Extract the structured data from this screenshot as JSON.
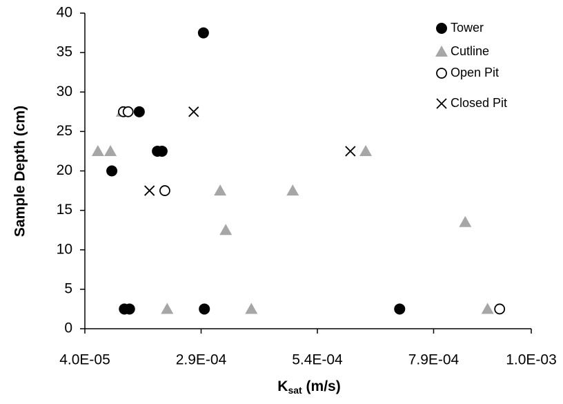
{
  "chart_data": {
    "type": "scatter",
    "x_label": [
      "K",
      "sat",
      " (m/s)"
    ],
    "y_label": "Sample Depth (cm)",
    "xlim": [
      4e-05,
      0.001
    ],
    "xticks": [
      {
        "value": 4e-05,
        "label": "4.0E-05"
      },
      {
        "value": 0.00029,
        "label": "2.9E-04"
      },
      {
        "value": 0.00054,
        "label": "5.4E-04"
      },
      {
        "value": 0.00079,
        "label": "7.9E-04"
      },
      {
        "value": 0.001,
        "label": "1.0E-03"
      }
    ],
    "ylim": [
      0,
      40
    ],
    "yticks": [
      0,
      5,
      10,
      15,
      20,
      25,
      30,
      35,
      40
    ],
    "grid": false,
    "legend": "top-right",
    "series": [
      {
        "name": "Tower",
        "color": "#000000",
        "marker": "circle-filled",
        "x": [
          0.000295,
          0.000157,
          0.000196,
          0.000206,
          9.8e-05,
          0.000125,
          0.000136,
          0.000297,
          0.000717
        ],
        "values": [
          37.5,
          27.5,
          22.5,
          22.5,
          20,
          2.5,
          2.5,
          2.5,
          2.5
        ]
      },
      {
        "name": "Cutline",
        "color": "#a6a6a6",
        "marker": "triangle",
        "x": [
          6.8e-05,
          9.5e-05,
          0.00012,
          0.000331,
          0.000343,
          0.000487,
          0.000644,
          0.000858,
          0.000217,
          0.000398,
          0.000906
        ],
        "values": [
          22.5,
          22.5,
          27.5,
          17.5,
          12.5,
          17.5,
          22.5,
          13.5,
          2.5,
          2.5,
          2.5
        ]
      },
      {
        "name": "Open Pit",
        "color": "#000000",
        "marker": "circle-open",
        "x": [
          0.000123,
          0.000133,
          0.000212,
          0.000932
        ],
        "values": [
          27.5,
          27.5,
          17.5,
          2.5
        ]
      },
      {
        "name": "Closed Pit",
        "color": "#000000",
        "marker": "x",
        "x": [
          0.000274,
          0.000179,
          0.000611
        ],
        "values": [
          27.5,
          17.5,
          22.5
        ]
      }
    ]
  }
}
